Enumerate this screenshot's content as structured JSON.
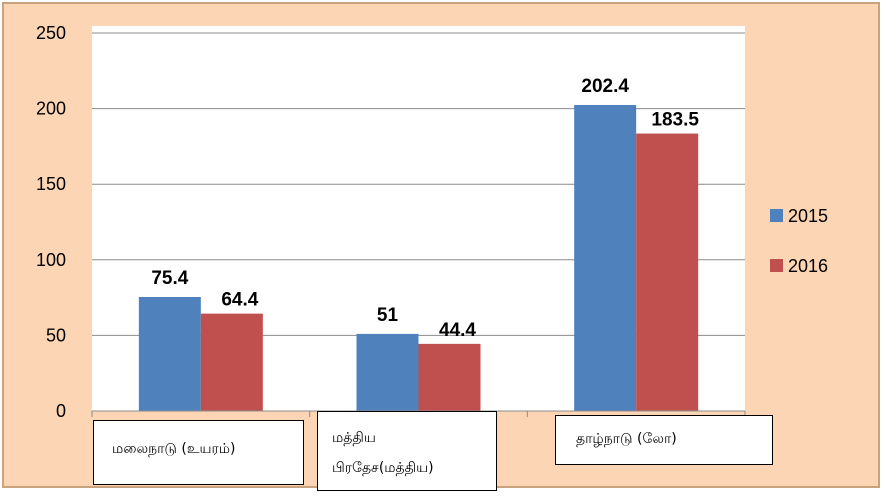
{
  "colors": {
    "background": "#fcd5b5",
    "plot_area": "#ffffff",
    "gridline": "#8c8c8c",
    "border": "#c9a27e",
    "series_2015": "#4f81bd",
    "series_2016": "#c0504d"
  },
  "chart_data": {
    "type": "bar",
    "categories": [
      "மலைநாடு (உயரம்)",
      "மத்திய பிரதேச(மத்திய)",
      "தாழ்நாடு (லோ)"
    ],
    "category_lines": [
      [
        "மலைநாடு (உயரம்)"
      ],
      [
        "மத்திய",
        "பிரதேச(மத்திய)"
      ],
      [
        "தாழ்நாடு (லோ)"
      ]
    ],
    "series": [
      {
        "name": "2015",
        "values": [
          75.4,
          51,
          202.4
        ],
        "labels": [
          "75.4",
          "51",
          "202.4"
        ]
      },
      {
        "name": "2016",
        "values": [
          64.4,
          44.4,
          183.5
        ],
        "labels": [
          "64.4",
          "44.4",
          "183.5"
        ]
      }
    ],
    "title": "",
    "xlabel": "",
    "ylabel": "",
    "ylim": [
      0,
      250
    ],
    "yticks": [
      "0",
      "50",
      "100",
      "150",
      "200",
      "250"
    ],
    "grid": true,
    "legend_position": "right"
  }
}
